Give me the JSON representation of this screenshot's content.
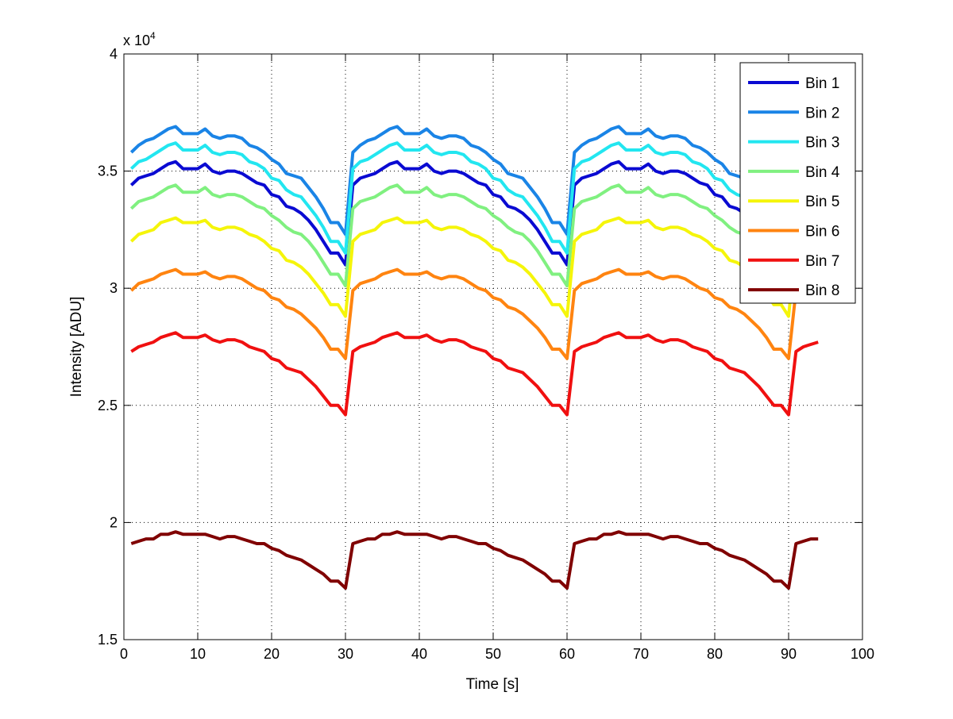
{
  "chart_data": {
    "type": "line",
    "title": "",
    "xlabel": "Time [s]",
    "ylabel": "Intensity [ADU]",
    "y_multiplier_label": "x 10",
    "y_multiplier_exponent": "4",
    "xlim": [
      0,
      100
    ],
    "ylim": [
      1.5,
      4
    ],
    "x_ticks": [
      "0",
      "10",
      "20",
      "30",
      "40",
      "50",
      "60",
      "70",
      "80",
      "90",
      "100"
    ],
    "x_tick_values": [
      0,
      10,
      20,
      30,
      40,
      50,
      60,
      70,
      80,
      90,
      100
    ],
    "y_ticks": [
      "1.5",
      "2",
      "2.5",
      "3",
      "3.5",
      "4"
    ],
    "y_tick_values": [
      1.5,
      2,
      2.5,
      3,
      3.5,
      4
    ],
    "grid": true,
    "legend_position": "top-right",
    "x_start": 1,
    "x_end": 94,
    "period": 30,
    "note_values": "y values in units of 10^4 ADU; series repeats its 30-point cycle over x = 1..94",
    "series": [
      {
        "name": "Bin 1",
        "color": "#0a0ad2",
        "cycle_values": [
          3.44,
          3.47,
          3.48,
          3.49,
          3.51,
          3.53,
          3.54,
          3.51,
          3.51,
          3.51,
          3.53,
          3.5,
          3.49,
          3.5,
          3.5,
          3.49,
          3.47,
          3.45,
          3.44,
          3.4,
          3.39,
          3.35,
          3.34,
          3.32,
          3.29,
          3.25,
          3.2,
          3.15,
          3.15,
          3.1
        ]
      },
      {
        "name": "Bin 2",
        "color": "#1a84e6",
        "cycle_values": [
          3.58,
          3.61,
          3.63,
          3.64,
          3.66,
          3.68,
          3.69,
          3.66,
          3.66,
          3.66,
          3.68,
          3.65,
          3.64,
          3.65,
          3.65,
          3.64,
          3.61,
          3.6,
          3.58,
          3.55,
          3.53,
          3.49,
          3.48,
          3.47,
          3.43,
          3.39,
          3.34,
          3.28,
          3.28,
          3.23
        ]
      },
      {
        "name": "Bin 3",
        "color": "#22e6f0",
        "cycle_values": [
          3.51,
          3.54,
          3.55,
          3.57,
          3.59,
          3.61,
          3.62,
          3.59,
          3.59,
          3.59,
          3.61,
          3.58,
          3.57,
          3.58,
          3.58,
          3.57,
          3.54,
          3.53,
          3.51,
          3.47,
          3.46,
          3.42,
          3.4,
          3.39,
          3.35,
          3.31,
          3.26,
          3.2,
          3.2,
          3.15
        ]
      },
      {
        "name": "Bin 4",
        "color": "#80f080",
        "cycle_values": [
          3.34,
          3.37,
          3.38,
          3.39,
          3.41,
          3.43,
          3.44,
          3.41,
          3.41,
          3.41,
          3.43,
          3.4,
          3.39,
          3.4,
          3.4,
          3.39,
          3.37,
          3.35,
          3.34,
          3.31,
          3.29,
          3.26,
          3.24,
          3.23,
          3.2,
          3.16,
          3.11,
          3.06,
          3.06,
          3.01
        ]
      },
      {
        "name": "Bin 5",
        "color": "#f5f50a",
        "cycle_values": [
          3.2,
          3.23,
          3.24,
          3.25,
          3.28,
          3.29,
          3.3,
          3.28,
          3.28,
          3.28,
          3.29,
          3.26,
          3.25,
          3.26,
          3.26,
          3.25,
          3.23,
          3.22,
          3.2,
          3.17,
          3.16,
          3.12,
          3.11,
          3.09,
          3.06,
          3.02,
          2.98,
          2.93,
          2.93,
          2.88
        ]
      },
      {
        "name": "Bin 6",
        "color": "#ff8410",
        "cycle_values": [
          2.99,
          3.02,
          3.03,
          3.04,
          3.06,
          3.07,
          3.08,
          3.06,
          3.06,
          3.06,
          3.07,
          3.05,
          3.04,
          3.05,
          3.05,
          3.04,
          3.02,
          3.0,
          2.99,
          2.96,
          2.95,
          2.92,
          2.91,
          2.89,
          2.86,
          2.83,
          2.79,
          2.74,
          2.74,
          2.7
        ]
      },
      {
        "name": "Bin 7",
        "color": "#f01010",
        "cycle_values": [
          2.73,
          2.75,
          2.76,
          2.77,
          2.79,
          2.8,
          2.81,
          2.79,
          2.79,
          2.79,
          2.8,
          2.78,
          2.77,
          2.78,
          2.78,
          2.77,
          2.75,
          2.74,
          2.73,
          2.7,
          2.69,
          2.66,
          2.65,
          2.64,
          2.61,
          2.58,
          2.54,
          2.5,
          2.5,
          2.46
        ]
      },
      {
        "name": "Bin 8",
        "color": "#800000",
        "cycle_values": [
          1.91,
          1.92,
          1.93,
          1.93,
          1.95,
          1.95,
          1.96,
          1.95,
          1.95,
          1.95,
          1.95,
          1.94,
          1.93,
          1.94,
          1.94,
          1.93,
          1.92,
          1.91,
          1.91,
          1.89,
          1.88,
          1.86,
          1.85,
          1.84,
          1.82,
          1.8,
          1.78,
          1.75,
          1.75,
          1.72
        ]
      }
    ]
  }
}
